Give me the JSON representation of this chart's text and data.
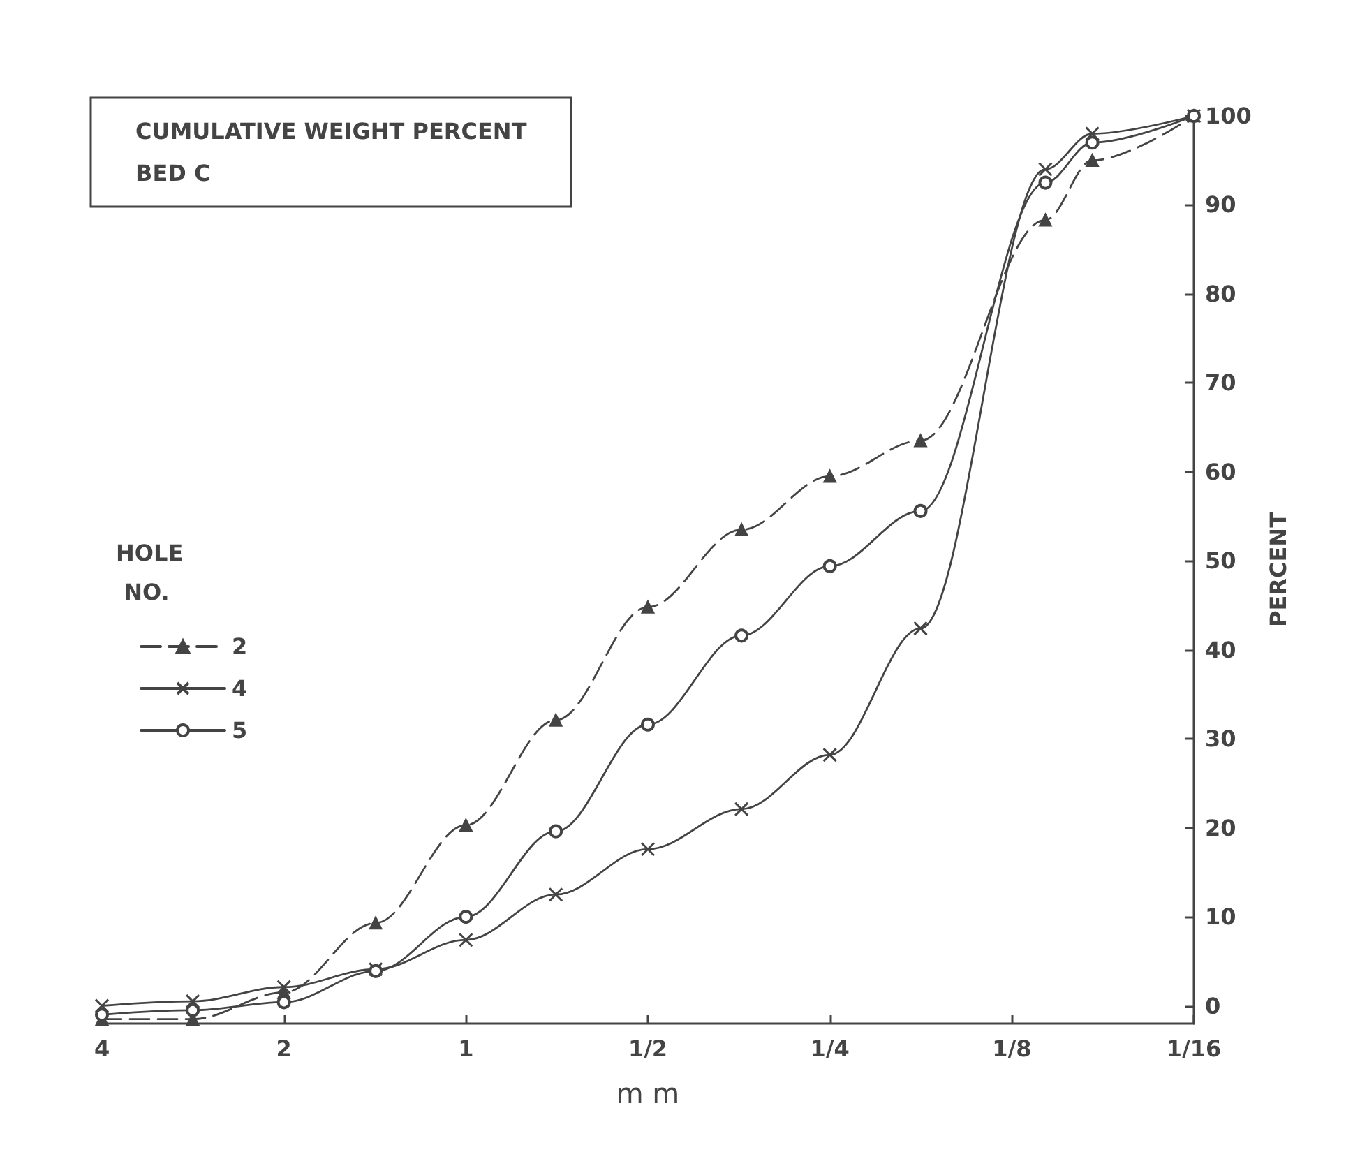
{
  "chart_data": {
    "type": "line",
    "title": "CUMULATIVE WEIGHT PERCENT",
    "subtitle": "BED C",
    "xlabel": "m m",
    "ylabel": "PERCENT",
    "legend_title": "HOLE NO.",
    "x": [
      4,
      2.83,
      2,
      1.41,
      1,
      0.71,
      0.5,
      0.35,
      0.25,
      0.177,
      0.11,
      0.092,
      0.0625
    ],
    "series": [
      {
        "name": "2",
        "color": "#444444",
        "marker": "triangle",
        "line_style": "dashed",
        "values": [
          -1.5,
          -1.5,
          1.5,
          9.3,
          20.3,
          32.1,
          44.8,
          53.5,
          59.5,
          63.5,
          88.3,
          95,
          100
        ]
      },
      {
        "name": "4",
        "color": "#444444",
        "marker": "cross",
        "line_style": "solid",
        "values": [
          0,
          0.5,
          2.1,
          4.1,
          7.4,
          12.5,
          17.6,
          22.1,
          28.2,
          42.4,
          94,
          98,
          100
        ]
      },
      {
        "name": "5",
        "color": "#444444",
        "marker": "circle",
        "line_style": "solid",
        "values": [
          -1,
          -0.5,
          0.4,
          3.9,
          10,
          19.6,
          31.6,
          41.6,
          49.4,
          55.6,
          92.5,
          97,
          100
        ]
      }
    ],
    "xlim": [
      4,
      0.0625
    ],
    "xticks": [
      {
        "value": 4,
        "label": "4"
      },
      {
        "value": 2,
        "label": "2"
      },
      {
        "value": 1,
        "label": "1"
      },
      {
        "value": 0.5,
        "label": "1/2"
      },
      {
        "value": 0.25,
        "label": "1/4"
      },
      {
        "value": 0.125,
        "label": "1/8"
      },
      {
        "value": 0.0625,
        "label": "1/16"
      }
    ],
    "ylim": [
      -2,
      100
    ],
    "yticks": [
      0,
      10,
      20,
      30,
      40,
      50,
      60,
      70,
      80,
      90,
      100
    ],
    "log": "x",
    "grid": false,
    "legend": "left"
  }
}
